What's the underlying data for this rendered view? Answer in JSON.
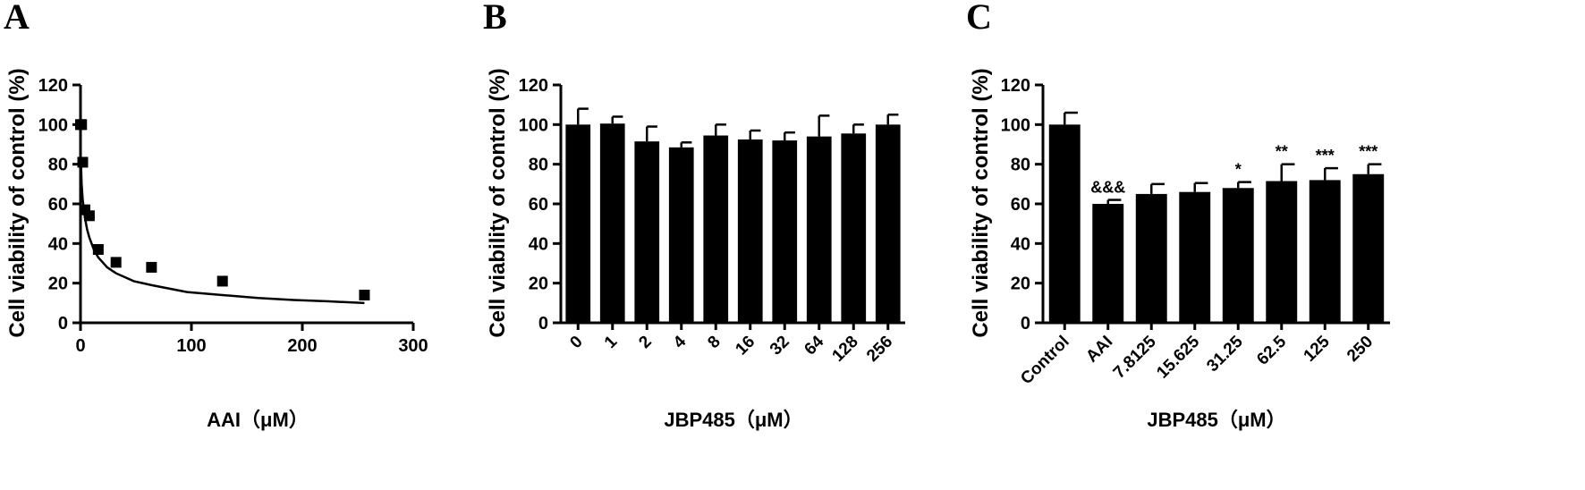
{
  "chart_data": [
    {
      "panel": "A",
      "type": "scatter",
      "xlabel": "AAI（μM）",
      "ylabel": "Cell viability of control (%)",
      "xlim": [
        0,
        300
      ],
      "ylim": [
        0,
        120
      ],
      "xticks": [
        "0",
        "100",
        "200",
        "300"
      ],
      "yticks": [
        "0",
        "20",
        "40",
        "60",
        "80",
        "100",
        "120"
      ],
      "points": [
        {
          "x": 0,
          "y": 100
        },
        {
          "x": 1,
          "y": 100
        },
        {
          "x": 2,
          "y": 81
        },
        {
          "x": 4,
          "y": 57
        },
        {
          "x": 8,
          "y": 54
        },
        {
          "x": 16,
          "y": 37
        },
        {
          "x": 32,
          "y": 30.5
        },
        {
          "x": 64,
          "y": 28
        },
        {
          "x": 128,
          "y": 21
        },
        {
          "x": 256,
          "y": 14
        }
      ],
      "fit_curve": {
        "x": [
          0.5,
          1,
          2,
          4,
          6,
          8,
          12,
          16,
          24,
          32,
          48,
          64,
          96,
          128,
          160,
          192,
          224,
          256
        ],
        "y": [
          79,
          70,
          62,
          53,
          47,
          43,
          37,
          33,
          28,
          25,
          21,
          19,
          15.5,
          14,
          12.5,
          11.5,
          10.8,
          10
        ]
      },
      "grid": false,
      "legend": "none"
    },
    {
      "panel": "B",
      "type": "bar",
      "xlabel": "JBP485（μM）",
      "ylabel": "Cell viability of control (%)",
      "ylim": [
        0,
        120
      ],
      "yticks": [
        "0",
        "20",
        "40",
        "60",
        "80",
        "100",
        "120"
      ],
      "categories": [
        "0",
        "1",
        "2",
        "4",
        "8",
        "16",
        "32",
        "64",
        "128",
        "256"
      ],
      "values": [
        100,
        100.5,
        91.5,
        88.5,
        94.5,
        92.5,
        92,
        94,
        95.5,
        100
      ],
      "errors": [
        8,
        3.5,
        7.5,
        2.5,
        5.5,
        4.5,
        4,
        10.5,
        4.5,
        5
      ],
      "grid": false,
      "legend": "none"
    },
    {
      "panel": "C",
      "type": "bar",
      "xlabel": "JBP485（μM）",
      "ylabel": "Cell viability of control (%)",
      "ylim": [
        0,
        120
      ],
      "yticks": [
        "0",
        "20",
        "40",
        "60",
        "80",
        "100",
        "120"
      ],
      "categories": [
        "Control",
        "AAI",
        "7.8125",
        "15.625",
        "31.25",
        "62.5",
        "125",
        "250"
      ],
      "values": [
        100,
        60,
        65,
        66,
        68,
        71.5,
        72,
        75
      ],
      "errors": [
        6,
        2,
        5,
        4.5,
        3,
        8.5,
        6,
        5
      ],
      "annotations": [
        "",
        "&&&",
        "",
        "",
        "*",
        "**",
        "***",
        "***"
      ],
      "grid": false,
      "legend": "none"
    }
  ]
}
